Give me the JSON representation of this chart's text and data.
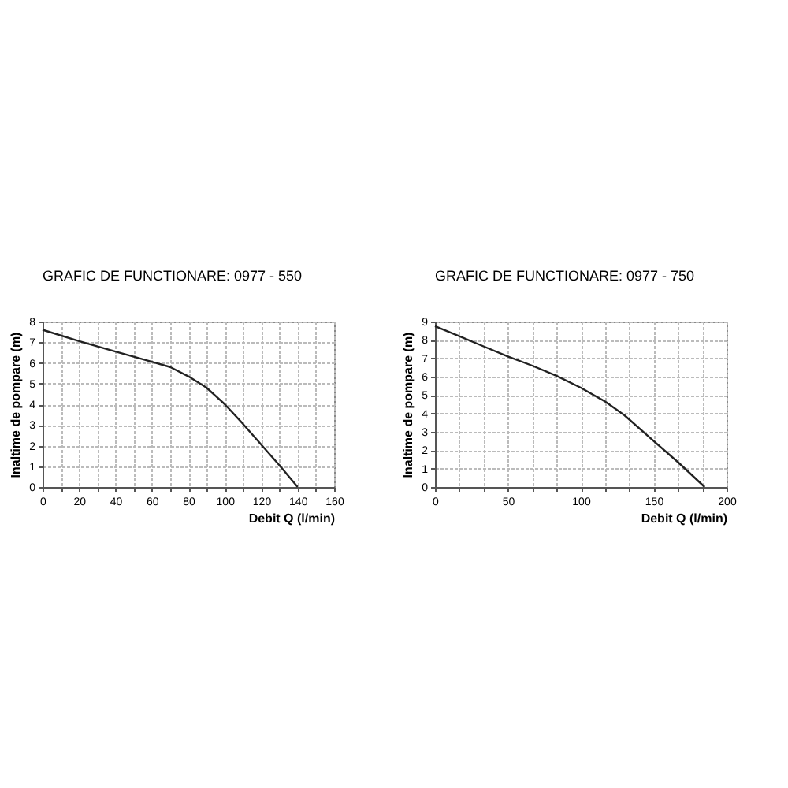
{
  "chart_data": [
    {
      "type": "line",
      "title": "GRAFIC DE FUNCTIONARE: 0977 - 550",
      "xlabel": "Debit  Q (l/min)",
      "ylabel": "Inaltime de pompare (m)",
      "series": [
        {
          "color": "#222222",
          "x": [
            0,
            20,
            40,
            60,
            70,
            80,
            90,
            100,
            110,
            120,
            130,
            140
          ],
          "values": [
            7.6,
            7.05,
            6.55,
            6.05,
            5.8,
            5.35,
            4.8,
            4.0,
            3.05,
            2.05,
            1.05,
            0
          ]
        }
      ],
      "xlim": [
        0,
        160
      ],
      "ylim": [
        0,
        8
      ],
      "xticks": [
        0,
        {
          "value": 10,
          "label": null
        },
        20,
        {
          "value": 30,
          "label": null
        },
        40,
        {
          "value": 50,
          "label": null
        },
        60,
        {
          "value": 70,
          "label": null
        },
        80,
        {
          "value": 90,
          "label": null
        },
        100,
        {
          "value": 110,
          "label": null
        },
        120,
        {
          "value": 130,
          "label": null
        },
        140,
        {
          "value": 150,
          "label": null
        },
        160
      ],
      "yticks": [
        0,
        1,
        2,
        3,
        4,
        5,
        6,
        7,
        8
      ],
      "grid": true,
      "marker": "none",
      "line_style": "solid"
    },
    {
      "type": "line",
      "title": "GRAFIC DE FUNCTIONARE: 0977 - 750",
      "xlabel": "Debit  Q (l/min)",
      "ylabel": "Inaltime de pompare (m)",
      "series": [
        {
          "color": "#222222",
          "x": [
            0,
            16.7,
            33.3,
            50,
            66.7,
            83.3,
            100,
            116.7,
            130,
            150,
            166.7,
            185
          ],
          "values": [
            8.75,
            8.2,
            7.65,
            7.1,
            6.6,
            6.05,
            5.4,
            4.65,
            3.9,
            2.5,
            1.35,
            0
          ]
        }
      ],
      "xlim": [
        0,
        200
      ],
      "ylim": [
        0,
        9
      ],
      "xticks": [
        0,
        {
          "value": 16.67,
          "label": null
        },
        {
          "value": 33.33,
          "label": null
        },
        50,
        {
          "value": 66.67,
          "label": null
        },
        {
          "value": 83.33,
          "label": null
        },
        100,
        {
          "value": 116.67,
          "label": null
        },
        {
          "value": 133.33,
          "label": null
        },
        150,
        {
          "value": 166.67,
          "label": null
        },
        {
          "value": 183.33,
          "label": null
        },
        200
      ],
      "yticks": [
        0,
        1,
        2,
        3,
        4,
        5,
        6,
        7,
        8,
        9
      ],
      "grid": true,
      "marker": "none",
      "line_style": "solid"
    }
  ]
}
